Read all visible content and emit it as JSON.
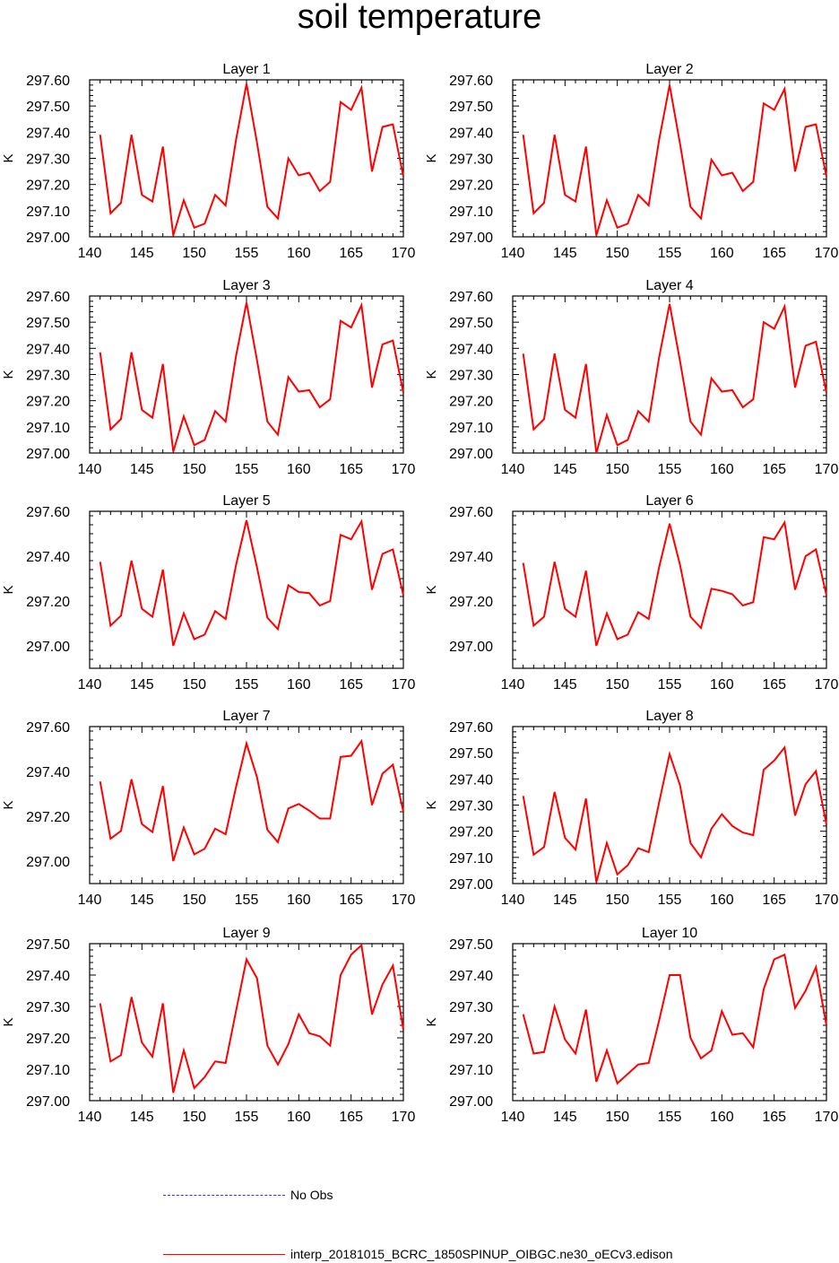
{
  "title": "soil temperature",
  "legend": {
    "obs_label": "No Obs",
    "obs_color": "#3333ff",
    "model_label": "interp_20181015_BCRC_1850SPINUP_OIBGC.ne30_oECv3.edison",
    "model_color": "#ff0000"
  },
  "chart_data": [
    {
      "type": "line",
      "title": "Layer 1",
      "ylabel": "K",
      "xlim": [
        140,
        170
      ],
      "ylim": [
        297.0,
        297.6
      ],
      "xticks": [
        "140",
        "145",
        "150",
        "155",
        "160",
        "165",
        "170"
      ],
      "yticks": [
        "297.00",
        "297.10",
        "297.20",
        "297.30",
        "297.40",
        "297.50",
        "297.60"
      ],
      "x": [
        141,
        142,
        143,
        144,
        145,
        146,
        147,
        148,
        149,
        150,
        151,
        152,
        153,
        154,
        155,
        156,
        157,
        158,
        159,
        160,
        161,
        162,
        163,
        164,
        165,
        166,
        167,
        168,
        169,
        170
      ],
      "series": [
        {
          "name": "interp_20181015_BCRC_1850SPINUP_OIBGC.ne30_oECv3.edison",
          "color": "#ff0000",
          "values": [
            297.39,
            297.09,
            297.13,
            297.39,
            297.16,
            297.135,
            297.345,
            297.005,
            297.14,
            297.035,
            297.05,
            297.16,
            297.12,
            297.37,
            297.585,
            297.36,
            297.115,
            297.07,
            297.3,
            297.235,
            297.245,
            297.175,
            297.21,
            297.515,
            297.485,
            297.57,
            297.25,
            297.42,
            297.43,
            297.23
          ]
        }
      ]
    },
    {
      "type": "line",
      "title": "Layer 2",
      "ylabel": "K",
      "xlim": [
        140,
        170
      ],
      "ylim": [
        297.0,
        297.6
      ],
      "xticks": [
        "140",
        "145",
        "150",
        "155",
        "160",
        "165",
        "170"
      ],
      "yticks": [
        "297.00",
        "297.10",
        "297.20",
        "297.30",
        "297.40",
        "297.50",
        "297.60"
      ],
      "x": [
        141,
        142,
        143,
        144,
        145,
        146,
        147,
        148,
        149,
        150,
        151,
        152,
        153,
        154,
        155,
        156,
        157,
        158,
        159,
        160,
        161,
        162,
        163,
        164,
        165,
        166,
        167,
        168,
        169,
        170
      ],
      "series": [
        {
          "name": "interp_20181015_BCRC_1850SPINUP_OIBGC.ne30_oECv3.edison",
          "color": "#ff0000",
          "values": [
            297.39,
            297.09,
            297.13,
            297.39,
            297.16,
            297.135,
            297.345,
            297.005,
            297.14,
            297.035,
            297.05,
            297.16,
            297.12,
            297.37,
            297.58,
            297.355,
            297.115,
            297.07,
            297.295,
            297.235,
            297.245,
            297.175,
            297.21,
            297.51,
            297.485,
            297.565,
            297.25,
            297.42,
            297.43,
            297.23
          ]
        }
      ]
    },
    {
      "type": "line",
      "title": "Layer 3",
      "ylabel": "K",
      "xlim": [
        140,
        170
      ],
      "ylim": [
        297.0,
        297.6
      ],
      "xticks": [
        "140",
        "145",
        "150",
        "155",
        "160",
        "165",
        "170"
      ],
      "yticks": [
        "297.00",
        "297.10",
        "297.20",
        "297.30",
        "297.40",
        "297.50",
        "297.60"
      ],
      "x": [
        141,
        142,
        143,
        144,
        145,
        146,
        147,
        148,
        149,
        150,
        151,
        152,
        153,
        154,
        155,
        156,
        157,
        158,
        159,
        160,
        161,
        162,
        163,
        164,
        165,
        166,
        167,
        168,
        169,
        170
      ],
      "series": [
        {
          "name": "interp_20181015_BCRC_1850SPINUP_OIBGC.ne30_oECv3.edison",
          "color": "#ff0000",
          "values": [
            297.385,
            297.09,
            297.13,
            297.385,
            297.165,
            297.135,
            297.34,
            297.005,
            297.14,
            297.03,
            297.05,
            297.16,
            297.12,
            297.37,
            297.575,
            297.355,
            297.12,
            297.07,
            297.29,
            297.235,
            297.24,
            297.175,
            297.205,
            297.505,
            297.48,
            297.565,
            297.25,
            297.415,
            297.43,
            297.23
          ]
        }
      ]
    },
    {
      "type": "line",
      "title": "Layer 4",
      "ylabel": "K",
      "xlim": [
        140,
        170
      ],
      "ylim": [
        297.0,
        297.6
      ],
      "xticks": [
        "140",
        "145",
        "150",
        "155",
        "160",
        "165",
        "170"
      ],
      "yticks": [
        "297.00",
        "297.10",
        "297.20",
        "297.30",
        "297.40",
        "297.50",
        "297.60"
      ],
      "x": [
        141,
        142,
        143,
        144,
        145,
        146,
        147,
        148,
        149,
        150,
        151,
        152,
        153,
        154,
        155,
        156,
        157,
        158,
        159,
        160,
        161,
        162,
        163,
        164,
        165,
        166,
        167,
        168,
        169,
        170
      ],
      "series": [
        {
          "name": "interp_20181015_BCRC_1850SPINUP_OIBGC.ne30_oECv3.edison",
          "color": "#ff0000",
          "values": [
            297.38,
            297.09,
            297.13,
            297.38,
            297.165,
            297.135,
            297.34,
            297.0,
            297.145,
            297.03,
            297.05,
            297.16,
            297.12,
            297.365,
            297.57,
            297.35,
            297.12,
            297.07,
            297.285,
            297.235,
            297.24,
            297.175,
            297.205,
            297.5,
            297.475,
            297.56,
            297.25,
            297.41,
            297.425,
            297.23
          ]
        }
      ]
    },
    {
      "type": "line",
      "title": "Layer 5",
      "ylabel": "K",
      "xlim": [
        140,
        170
      ],
      "ylim": [
        296.9,
        297.6
      ],
      "xticks": [
        "140",
        "145",
        "150",
        "155",
        "160",
        "165",
        "170"
      ],
      "yticks": [
        "297.00",
        "297.20",
        "297.40",
        "297.60"
      ],
      "x": [
        141,
        142,
        143,
        144,
        145,
        146,
        147,
        148,
        149,
        150,
        151,
        152,
        153,
        154,
        155,
        156,
        157,
        158,
        159,
        160,
        161,
        162,
        163,
        164,
        165,
        166,
        167,
        168,
        169,
        170
      ],
      "series": [
        {
          "name": "interp_20181015_BCRC_1850SPINUP_OIBGC.ne30_oECv3.edison",
          "color": "#ff0000",
          "values": [
            297.375,
            297.09,
            297.135,
            297.38,
            297.165,
            297.13,
            297.34,
            297.0,
            297.145,
            297.03,
            297.05,
            297.155,
            297.12,
            297.36,
            297.56,
            297.35,
            297.125,
            297.075,
            297.27,
            297.24,
            297.235,
            297.18,
            297.2,
            297.495,
            297.475,
            297.555,
            297.25,
            297.41,
            297.43,
            297.225
          ]
        }
      ]
    },
    {
      "type": "line",
      "title": "Layer 6",
      "ylabel": "K",
      "xlim": [
        140,
        170
      ],
      "ylim": [
        296.9,
        297.6
      ],
      "xticks": [
        "140",
        "145",
        "150",
        "155",
        "160",
        "165",
        "170"
      ],
      "yticks": [
        "297.00",
        "297.20",
        "297.40",
        "297.60"
      ],
      "x": [
        141,
        142,
        143,
        144,
        145,
        146,
        147,
        148,
        149,
        150,
        151,
        152,
        153,
        154,
        155,
        156,
        157,
        158,
        159,
        160,
        161,
        162,
        163,
        164,
        165,
        166,
        167,
        168,
        169,
        170
      ],
      "series": [
        {
          "name": "interp_20181015_BCRC_1850SPINUP_OIBGC.ne30_oECv3.edison",
          "color": "#ff0000",
          "values": [
            297.37,
            297.09,
            297.13,
            297.375,
            297.165,
            297.13,
            297.335,
            297.0,
            297.145,
            297.03,
            297.05,
            297.15,
            297.12,
            297.35,
            297.545,
            297.36,
            297.13,
            297.08,
            297.255,
            297.245,
            297.23,
            297.18,
            297.195,
            297.485,
            297.475,
            297.55,
            297.25,
            297.4,
            297.43,
            297.225
          ]
        }
      ]
    },
    {
      "type": "line",
      "title": "Layer 7",
      "ylabel": "K",
      "xlim": [
        140,
        170
      ],
      "ylim": [
        296.9,
        297.6
      ],
      "xticks": [
        "140",
        "145",
        "150",
        "155",
        "160",
        "165",
        "170"
      ],
      "yticks": [
        "297.00",
        "297.20",
        "297.40",
        "297.60"
      ],
      "x": [
        141,
        142,
        143,
        144,
        145,
        146,
        147,
        148,
        149,
        150,
        151,
        152,
        153,
        154,
        155,
        156,
        157,
        158,
        159,
        160,
        161,
        162,
        163,
        164,
        165,
        166,
        167,
        168,
        169,
        170
      ],
      "series": [
        {
          "name": "interp_20181015_BCRC_1850SPINUP_OIBGC.ne30_oECv3.edison",
          "color": "#ff0000",
          "values": [
            297.355,
            297.1,
            297.135,
            297.365,
            297.165,
            297.13,
            297.335,
            297.0,
            297.15,
            297.03,
            297.055,
            297.145,
            297.12,
            297.33,
            297.525,
            297.375,
            297.14,
            297.085,
            297.235,
            297.255,
            297.225,
            297.19,
            297.19,
            297.465,
            297.47,
            297.535,
            297.25,
            297.39,
            297.43,
            297.22
          ]
        }
      ]
    },
    {
      "type": "line",
      "title": "Layer 8",
      "ylabel": "K",
      "xlim": [
        140,
        170
      ],
      "ylim": [
        297.0,
        297.6
      ],
      "xticks": [
        "140",
        "145",
        "150",
        "155",
        "160",
        "165",
        "170"
      ],
      "yticks": [
        "297.00",
        "297.10",
        "297.20",
        "297.30",
        "297.40",
        "297.50",
        "297.60"
      ],
      "x": [
        141,
        142,
        143,
        144,
        145,
        146,
        147,
        148,
        149,
        150,
        151,
        152,
        153,
        154,
        155,
        156,
        157,
        158,
        159,
        160,
        161,
        162,
        163,
        164,
        165,
        166,
        167,
        168,
        169,
        170
      ],
      "series": [
        {
          "name": "interp_20181015_BCRC_1850SPINUP_OIBGC.ne30_oECv3.edison",
          "color": "#ff0000",
          "values": [
            297.335,
            297.11,
            297.14,
            297.35,
            297.175,
            297.13,
            297.325,
            297.005,
            297.155,
            297.035,
            297.07,
            297.135,
            297.12,
            297.31,
            297.495,
            297.375,
            297.155,
            297.1,
            297.21,
            297.265,
            297.22,
            297.195,
            297.185,
            297.435,
            297.47,
            297.52,
            297.26,
            297.38,
            297.43,
            297.225
          ]
        }
      ]
    },
    {
      "type": "line",
      "title": "Layer 9",
      "ylabel": "K",
      "xlim": [
        140,
        170
      ],
      "ylim": [
        297.0,
        297.5
      ],
      "xticks": [
        "140",
        "145",
        "150",
        "155",
        "160",
        "165",
        "170"
      ],
      "yticks": [
        "297.00",
        "297.10",
        "297.20",
        "297.30",
        "297.40",
        "297.50"
      ],
      "x": [
        141,
        142,
        143,
        144,
        145,
        146,
        147,
        148,
        149,
        150,
        151,
        152,
        153,
        154,
        155,
        156,
        157,
        158,
        159,
        160,
        161,
        162,
        163,
        164,
        165,
        166,
        167,
        168,
        169,
        170
      ],
      "series": [
        {
          "name": "interp_20181015_BCRC_1850SPINUP_OIBGC.ne30_oECv3.edison",
          "color": "#ff0000",
          "values": [
            297.31,
            297.125,
            297.145,
            297.33,
            297.185,
            297.14,
            297.31,
            297.025,
            297.16,
            297.04,
            297.075,
            297.125,
            297.12,
            297.285,
            297.45,
            297.39,
            297.175,
            297.115,
            297.18,
            297.275,
            297.215,
            297.205,
            297.175,
            297.4,
            297.465,
            297.495,
            297.275,
            297.37,
            297.43,
            297.225
          ]
        }
      ]
    },
    {
      "type": "line",
      "title": "Layer 10",
      "ylabel": "K",
      "xlim": [
        140,
        170
      ],
      "ylim": [
        297.0,
        297.5
      ],
      "xticks": [
        "140",
        "145",
        "150",
        "155",
        "160",
        "165",
        "170"
      ],
      "yticks": [
        "297.00",
        "297.10",
        "297.20",
        "297.30",
        "297.40",
        "297.50"
      ],
      "x": [
        141,
        142,
        143,
        144,
        145,
        146,
        147,
        148,
        149,
        150,
        151,
        152,
        153,
        154,
        155,
        156,
        157,
        158,
        159,
        160,
        161,
        162,
        163,
        164,
        165,
        166,
        167,
        168,
        169,
        170
      ],
      "series": [
        {
          "name": "interp_20181015_BCRC_1850SPINUP_OIBGC.ne30_oECv3.edison",
          "color": "#ff0000",
          "values": [
            297.275,
            297.15,
            297.155,
            297.3,
            297.195,
            297.15,
            297.29,
            297.06,
            297.16,
            297.055,
            297.085,
            297.115,
            297.12,
            297.255,
            297.4,
            297.4,
            297.2,
            297.135,
            297.16,
            297.285,
            297.21,
            297.215,
            297.17,
            297.355,
            297.45,
            297.465,
            297.295,
            297.35,
            297.425,
            297.24
          ]
        }
      ]
    }
  ]
}
